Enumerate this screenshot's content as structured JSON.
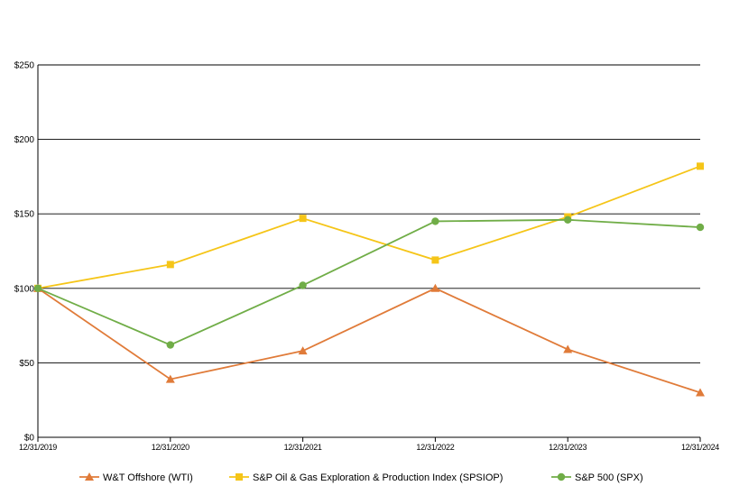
{
  "chart_data": {
    "type": "line",
    "title": "",
    "xlabel": "",
    "ylabel": "",
    "categories": [
      "12/31/2019",
      "12/31/2020",
      "12/31/2021",
      "12/31/2022",
      "12/31/2023",
      "12/31/2024"
    ],
    "ylim": [
      0,
      250
    ],
    "yticks": [
      0,
      50,
      100,
      150,
      200,
      250
    ],
    "ytick_labels": [
      "$0",
      "$50",
      "$100",
      "$150",
      "$200",
      "$250"
    ],
    "grid": true,
    "legend_position": "bottom",
    "series": [
      {
        "name": "W&T Offshore (WTI)",
        "marker": "triangle",
        "color": "#e07b39",
        "values": [
          100,
          39,
          58,
          100,
          59,
          30
        ]
      },
      {
        "name": "S&P Oil & Gas Exploration & Production Index (SPSIOP)",
        "marker": "square",
        "color": "#f5c518",
        "values": [
          100,
          116,
          147,
          119,
          148,
          182
        ]
      },
      {
        "name": "S&P 500 (SPX)",
        "marker": "circle",
        "color": "#70ad47",
        "values": [
          100,
          62,
          102,
          145,
          146,
          141
        ]
      }
    ]
  }
}
